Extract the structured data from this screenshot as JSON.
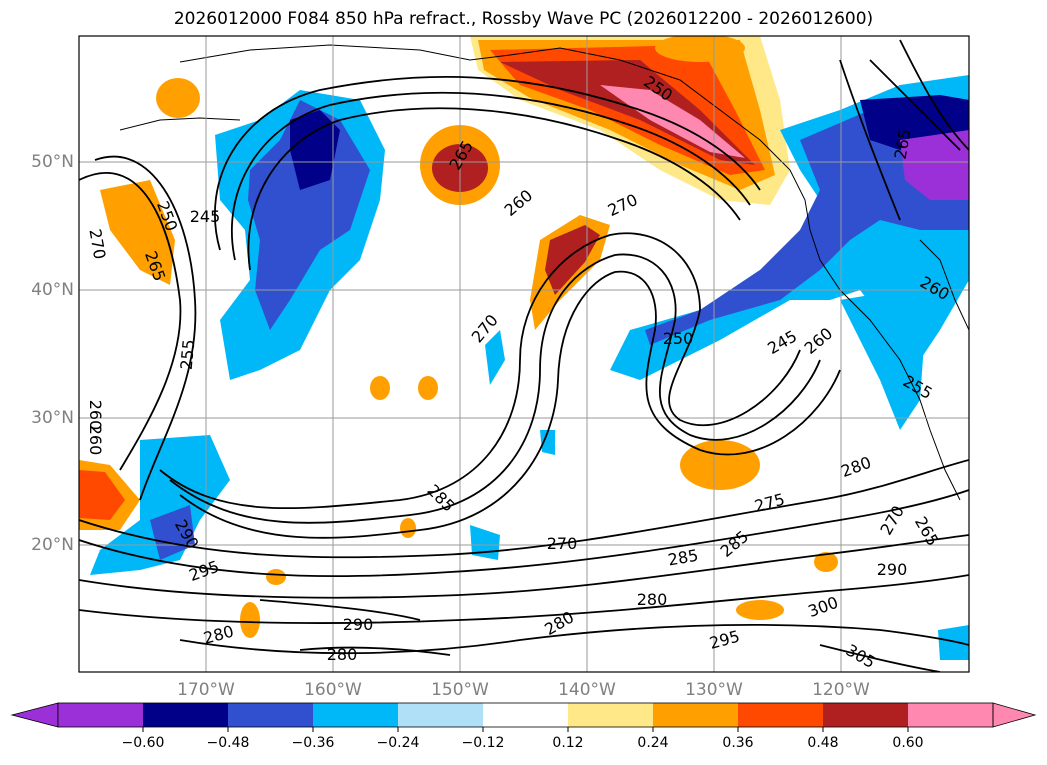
{
  "title": "2026012000 F084 850 hPa refract., Rossby Wave PC (2026012200 - 2026012600)",
  "lat_labels": [
    "50°N",
    "40°N",
    "30°N",
    "20°N"
  ],
  "lon_labels": [
    "170°W",
    "160°W",
    "150°W",
    "140°W",
    "130°W",
    "120°W"
  ],
  "colorbar": {
    "ticks": [
      "−0.60",
      "−0.48",
      "−0.36",
      "−0.24",
      "−0.12",
      "0.12",
      "0.24",
      "0.36",
      "0.48",
      "0.60"
    ],
    "colors": [
      "#9b30d8",
      "#000088",
      "#3050d0",
      "#00b8f8",
      "#b0e0f8",
      "#ffffff",
      "#ffe888",
      "#ffa000",
      "#ff4800",
      "#b02020",
      "#ff88b0"
    ]
  },
  "contour_labels": [
    "250",
    "245",
    "265",
    "270",
    "255",
    "260",
    "260",
    "265",
    "260",
    "270",
    "270",
    "250",
    "250",
    "245",
    "260",
    "265",
    "260",
    "255",
    "285",
    "290",
    "295",
    "290",
    "280",
    "270",
    "285",
    "280",
    "285",
    "275",
    "280",
    "280",
    "290",
    "300",
    "295",
    "305",
    "270",
    "265",
    "260",
    "280"
  ],
  "colors": {
    "coastline": "#000000",
    "grid": "#9a9a9a",
    "contour": "#000000",
    "axis_label": "#808080"
  }
}
